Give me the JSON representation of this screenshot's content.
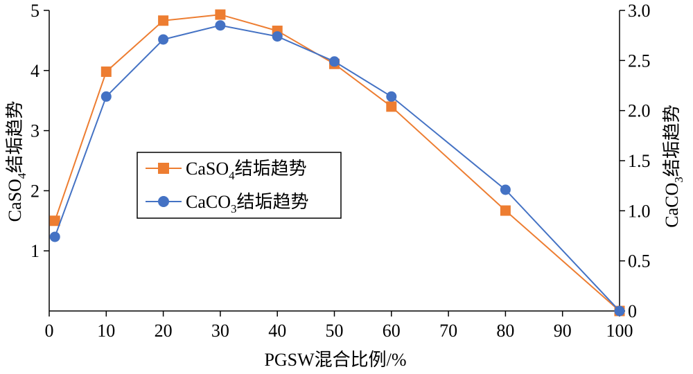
{
  "chart_data": {
    "type": "line",
    "x": [
      1,
      10,
      20,
      30,
      40,
      50,
      60,
      80,
      100
    ],
    "xlabel": "PGSW混合比例/%",
    "xlim": [
      0,
      100
    ],
    "xticks": [
      "0",
      "10",
      "20",
      "30",
      "40",
      "50",
      "60",
      "70",
      "80",
      "90",
      "100"
    ],
    "ylabel_left": {
      "base": "CaSO",
      "sub": "4",
      "rest": "结垢趋势"
    },
    "ylim_left": [
      0,
      5
    ],
    "yticks_left": [
      "1",
      "2",
      "3",
      "4",
      "5"
    ],
    "ylabel_right": {
      "base": "CaCO",
      "sub": "3",
      "rest": "结垢趋势"
    },
    "ylim_right": [
      0,
      3
    ],
    "yticks_right": [
      "0",
      "0.5",
      "1.0",
      "1.5",
      "2.0",
      "2.5",
      "3.0"
    ],
    "grid": false,
    "legend_position": "center-left",
    "series": [
      {
        "name": "CaSO4结垢趋势",
        "name_parts": {
          "base": "CaSO",
          "sub": "4",
          "rest": "结垢趋势"
        },
        "axis": "left",
        "marker": "square",
        "color": "#ed7d31",
        "values": [
          1.5,
          3.98,
          4.83,
          4.93,
          4.66,
          4.11,
          3.4,
          1.67,
          0.0
        ]
      },
      {
        "name": "CaCO3结垢趋势",
        "name_parts": {
          "base": "CaCO",
          "sub": "3",
          "rest": "结垢趋势"
        },
        "axis": "right",
        "marker": "circle",
        "color": "#4472c4",
        "values": [
          0.74,
          2.14,
          2.71,
          2.85,
          2.74,
          2.49,
          2.14,
          1.21,
          0.0
        ]
      }
    ]
  }
}
